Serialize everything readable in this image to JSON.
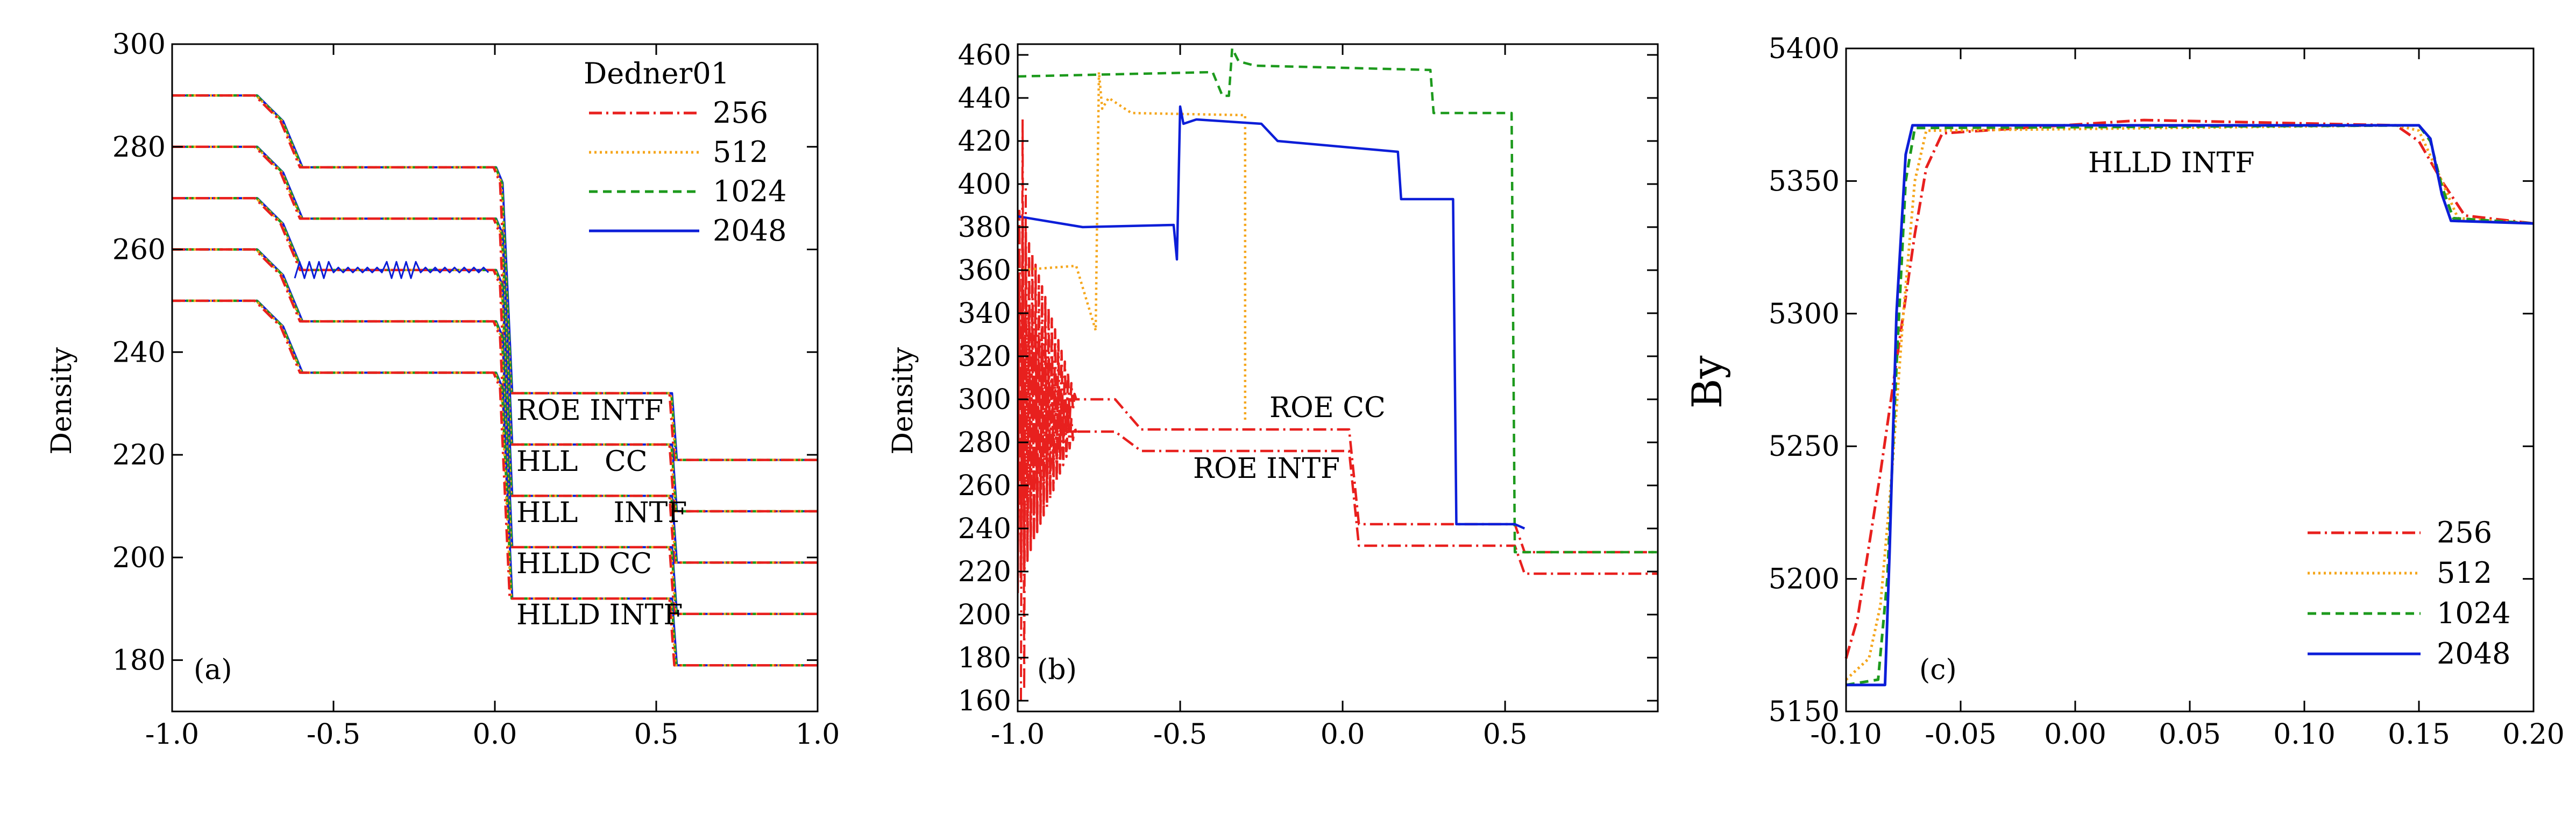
{
  "colors": {
    "c256": "#e8201e",
    "c512": "#f5a61c",
    "c1024": "#1d9a1d",
    "c2048": "#0c1ed8"
  },
  "panels": [
    {
      "id": "a",
      "panel_label": "(a)",
      "ylabel": "Density",
      "legend": {
        "title": "Dedner01",
        "entries": [
          "256",
          "512",
          "1024",
          "2048"
        ]
      },
      "annotations": [
        "ROE INTF",
        "HLL   CC",
        "HLL    INTF",
        "HLLD CC",
        "HLLD INTF"
      ]
    },
    {
      "id": "b",
      "panel_label": "(b)",
      "ylabel": "Density",
      "annotations": [
        "ROE CC",
        "ROE INTF"
      ]
    },
    {
      "id": "c",
      "panel_label": "(c)",
      "ylabel": "By",
      "legend": {
        "entries": [
          "256",
          "512",
          "1024",
          "2048"
        ]
      },
      "annotations": [
        "HLLD INTF"
      ]
    }
  ],
  "chart_data": [
    {
      "type": "line",
      "panel": "a",
      "xlim": [
        -1.0,
        1.0
      ],
      "ylim": [
        170,
        300
      ],
      "xticks": [
        -1.0,
        -0.5,
        0.0,
        0.5,
        1.0
      ],
      "xtick_labels": [
        "-1.0",
        "-0.5",
        "0.0",
        "0.5",
        "1.0"
      ],
      "yticks": [
        180,
        200,
        220,
        240,
        260,
        280,
        300
      ],
      "ytick_labels": [
        "180",
        "200",
        "220",
        "240",
        "260",
        "280",
        "300"
      ],
      "grid": false,
      "legend_position": "top-right",
      "series": [
        "256",
        "512",
        "1024",
        "2048"
      ],
      "profiles": [
        {
          "name": "ROE INTF",
          "levels": [
            290,
            276,
            266,
            232,
            219
          ]
        },
        {
          "name": "HLL CC",
          "levels": [
            280,
            266,
            256,
            222,
            209
          ]
        },
        {
          "name": "HLL INTF",
          "levels": [
            270,
            256,
            246,
            212,
            199
          ]
        },
        {
          "name": "HLLD CC",
          "levels": [
            260,
            246,
            236,
            202,
            189
          ]
        },
        {
          "name": "HLLD INTF",
          "levels": [
            250,
            236,
            226,
            192,
            179
          ]
        }
      ],
      "profile_transitions_x": [
        -0.66,
        -0.6,
        0.02,
        0.05,
        0.56
      ]
    },
    {
      "type": "line",
      "panel": "b",
      "xlim": [
        -1.0,
        0.97
      ],
      "ylim": [
        155,
        465
      ],
      "xticks": [
        -1.0,
        -0.5,
        0.0,
        0.5
      ],
      "xtick_labels": [
        "-1.0",
        "-0.5",
        "0.0",
        "0.5"
      ],
      "yticks": [
        160,
        180,
        200,
        220,
        240,
        260,
        280,
        300,
        320,
        340,
        360,
        380,
        400,
        420,
        440,
        460
      ],
      "ytick_labels": [
        "160",
        "180",
        "200",
        "220",
        "240",
        "260",
        "280",
        "300",
        "320",
        "340",
        "360",
        "380",
        "400",
        "420",
        "440",
        "460"
      ],
      "grid": false,
      "series": [
        {
          "name": "ROE INTF",
          "color_key": "c256",
          "dash": "dashdot",
          "x": [
            -1.0,
            -0.85,
            -0.7,
            -0.62,
            0.02,
            0.05,
            0.53,
            0.56,
            0.97
          ],
          "y": [
            285,
            285,
            285,
            276,
            276,
            232,
            232,
            219,
            219
          ]
        },
        {
          "name": "ROE CC",
          "color_key": "c256",
          "dash": "dashdot",
          "x": [
            -1.0,
            -0.85,
            -0.7,
            -0.62,
            0.02,
            0.05,
            0.53,
            0.56,
            0.97
          ],
          "y": [
            295,
            300,
            300,
            286,
            286,
            242,
            242,
            229,
            229
          ]
        },
        {
          "name": "512",
          "color_key": "c512",
          "dash": "dotted",
          "x": [
            -1.0,
            -0.82,
            -0.76,
            -0.75,
            -0.74,
            -0.72,
            -0.65,
            -0.3,
            -0.3
          ],
          "y": [
            360,
            362,
            332,
            452,
            435,
            440,
            433,
            432,
            290
          ]
        },
        {
          "name": "1024",
          "color_key": "c1024",
          "dash": "dashed",
          "x": [
            -1.0,
            -0.4,
            -0.37,
            -0.35,
            -0.34,
            -0.32,
            -0.27,
            0.27,
            0.28,
            0.52,
            0.53,
            0.97
          ],
          "y": [
            450,
            452,
            441,
            441,
            463,
            457,
            455,
            453,
            433,
            433,
            229,
            229
          ]
        },
        {
          "name": "2048",
          "color_key": "c2048",
          "dash": "solid",
          "x": [
            -1.0,
            -0.8,
            -0.52,
            -0.51,
            -0.5,
            -0.49,
            -0.45,
            -0.25,
            -0.2,
            0.17,
            0.18,
            0.34,
            0.35,
            0.53,
            0.56
          ],
          "y": [
            385,
            380,
            381,
            365,
            436,
            428,
            430,
            428,
            420,
            415,
            393,
            393,
            242,
            242,
            240
          ]
        }
      ]
    },
    {
      "type": "line",
      "panel": "c",
      "xlim": [
        -0.1,
        0.2
      ],
      "ylim": [
        5150,
        5400
      ],
      "xticks": [
        -0.1,
        -0.05,
        0.0,
        0.05,
        0.1,
        0.15,
        0.2
      ],
      "xtick_labels": [
        "-0.10",
        "-0.05",
        "0.00",
        "0.05",
        "0.10",
        "0.15",
        "0.20"
      ],
      "yticks": [
        5150,
        5200,
        5250,
        5300,
        5350,
        5400
      ],
      "ytick_labels": [
        "5150",
        "5200",
        "5250",
        "5300",
        "5350",
        "5400"
      ],
      "grid": false,
      "legend_position": "lower-right",
      "series": [
        {
          "name": "256",
          "color_key": "c256",
          "dash": "dashdot",
          "x": [
            -0.1,
            -0.095,
            -0.085,
            -0.075,
            -0.07,
            -0.065,
            -0.058,
            0.03,
            0.14,
            0.15,
            0.16,
            0.17,
            0.2
          ],
          "y": [
            5170,
            5185,
            5240,
            5300,
            5330,
            5355,
            5368,
            5373,
            5371,
            5365,
            5350,
            5337,
            5334
          ]
        },
        {
          "name": "512",
          "color_key": "c512",
          "dash": "dotted",
          "x": [
            -0.1,
            -0.09,
            -0.085,
            -0.08,
            -0.075,
            -0.07,
            -0.065,
            0.14,
            0.15,
            0.16,
            0.167,
            0.2
          ],
          "y": [
            5162,
            5170,
            5190,
            5240,
            5300,
            5350,
            5369,
            5371,
            5369,
            5350,
            5336,
            5334
          ]
        },
        {
          "name": "1024",
          "color_key": "c1024",
          "dash": "dashed",
          "x": [
            -0.1,
            -0.086,
            -0.082,
            -0.078,
            -0.074,
            -0.07,
            0.15,
            0.155,
            0.16,
            0.165,
            0.2
          ],
          "y": [
            5160,
            5162,
            5200,
            5280,
            5350,
            5370,
            5371,
            5365,
            5348,
            5336,
            5334
          ]
        },
        {
          "name": "2048",
          "color_key": "c2048",
          "dash": "solid",
          "x": [
            -0.1,
            -0.083,
            -0.081,
            -0.078,
            -0.074,
            -0.071,
            0.15,
            0.155,
            0.16,
            0.164,
            0.2
          ],
          "y": [
            5160,
            5160,
            5210,
            5300,
            5360,
            5371,
            5371,
            5366,
            5345,
            5335,
            5334
          ]
        }
      ]
    }
  ]
}
